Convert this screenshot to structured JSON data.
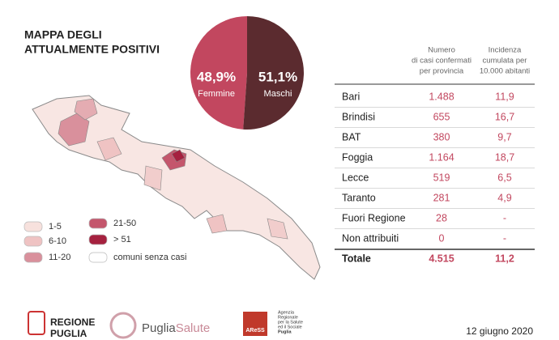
{
  "title": [
    "MAPPA DEGLI",
    "ATTUALMENTE POSITIVI"
  ],
  "chart_data": {
    "type": "pie",
    "categories": [
      "Femmine",
      "Maschi"
    ],
    "values": [
      48.9,
      51.1
    ],
    "value_labels": [
      "48,9%",
      "51,1%"
    ],
    "colors": [
      "#c2475f",
      "#5b2b2f"
    ]
  },
  "legend": [
    {
      "label": "1-5",
      "color": "#f7e1dd"
    },
    {
      "label": "6-10",
      "color": "#efc3c3"
    },
    {
      "label": "11-20",
      "color": "#d9909c"
    },
    {
      "label": "21-50",
      "color": "#c4566c"
    },
    {
      "label": "> 51",
      "color": "#a5213f"
    },
    {
      "label": "comuni senza casi",
      "color": "#ffffff"
    }
  ],
  "table": {
    "headers": [
      [
        "Numero",
        "di casi confermati",
        "per provincia"
      ],
      [
        "Incidenza",
        "cumulata per",
        "10.000 abitanti"
      ]
    ],
    "rows": [
      [
        "Bari",
        "1.488",
        "11,9"
      ],
      [
        "Brindisi",
        "655",
        "16,7"
      ],
      [
        "BAT",
        "380",
        "9,7"
      ],
      [
        "Foggia",
        "1.164",
        "18,7"
      ],
      [
        "Lecce",
        "519",
        "6,5"
      ],
      [
        "Taranto",
        "281",
        "4,9"
      ],
      [
        "Fuori Regione",
        "28",
        "-"
      ],
      [
        "Non attribuiti",
        "0",
        "-"
      ]
    ],
    "total": [
      "Totale",
      "4.515",
      "11,2"
    ]
  },
  "footer": {
    "region": [
      "REGIONE",
      "PUGLIA"
    ],
    "puglia_salute": [
      "Puglia",
      "Salute"
    ],
    "aress": [
      "Agenzia",
      "Regionale",
      "per la Salute",
      "ed il Sociale",
      "Puglia"
    ],
    "aress_logo": "AReSS",
    "date": "12 giugno 2020"
  }
}
